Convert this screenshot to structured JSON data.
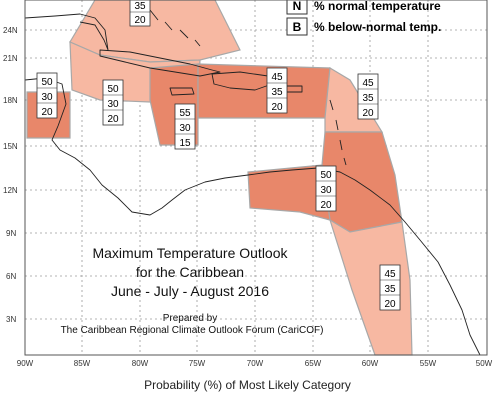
{
  "map": {
    "title_lines": [
      "Maximum Temperature Outlook",
      "for the Caribbean",
      "June - July - August 2016"
    ],
    "credit_lines": [
      "Prepared by",
      "The Caribbean Regional Climate Outlook Forum (CariCOF)"
    ],
    "legend": [
      {
        "key": "N",
        "text": "% normal temperature"
      },
      {
        "key": "B",
        "text": "% below-normal temp."
      }
    ],
    "lat_labels": [
      "24N",
      "21N",
      "18N",
      "15N",
      "12N",
      "9N",
      "6N",
      "3N"
    ],
    "lon_labels": [
      "90W",
      "85W",
      "80W",
      "75W",
      "70W",
      "65W",
      "60W",
      "55W",
      "50W"
    ],
    "colors": {
      "light_zone": "#f7b8a2",
      "dark_zone": "#e8876a",
      "zone_edge": "#a8a8a8",
      "coast": "#222222",
      "grid": "#9a9a9a"
    },
    "boxes": [
      {
        "values": [
          "35",
          "20"
        ]
      },
      {
        "values": [
          "50",
          "30",
          "20"
        ]
      },
      {
        "values": [
          "50",
          "30",
          "20"
        ]
      },
      {
        "values": [
          "55",
          "30",
          "15"
        ]
      },
      {
        "values": [
          "45",
          "35",
          "20"
        ]
      },
      {
        "values": [
          "45",
          "35",
          "20"
        ]
      },
      {
        "values": [
          "50",
          "30",
          "20"
        ]
      },
      {
        "values": [
          "45",
          "35",
          "20"
        ]
      }
    ]
  },
  "footer": {
    "caption": "Probability (%) of Most Likely Category"
  }
}
